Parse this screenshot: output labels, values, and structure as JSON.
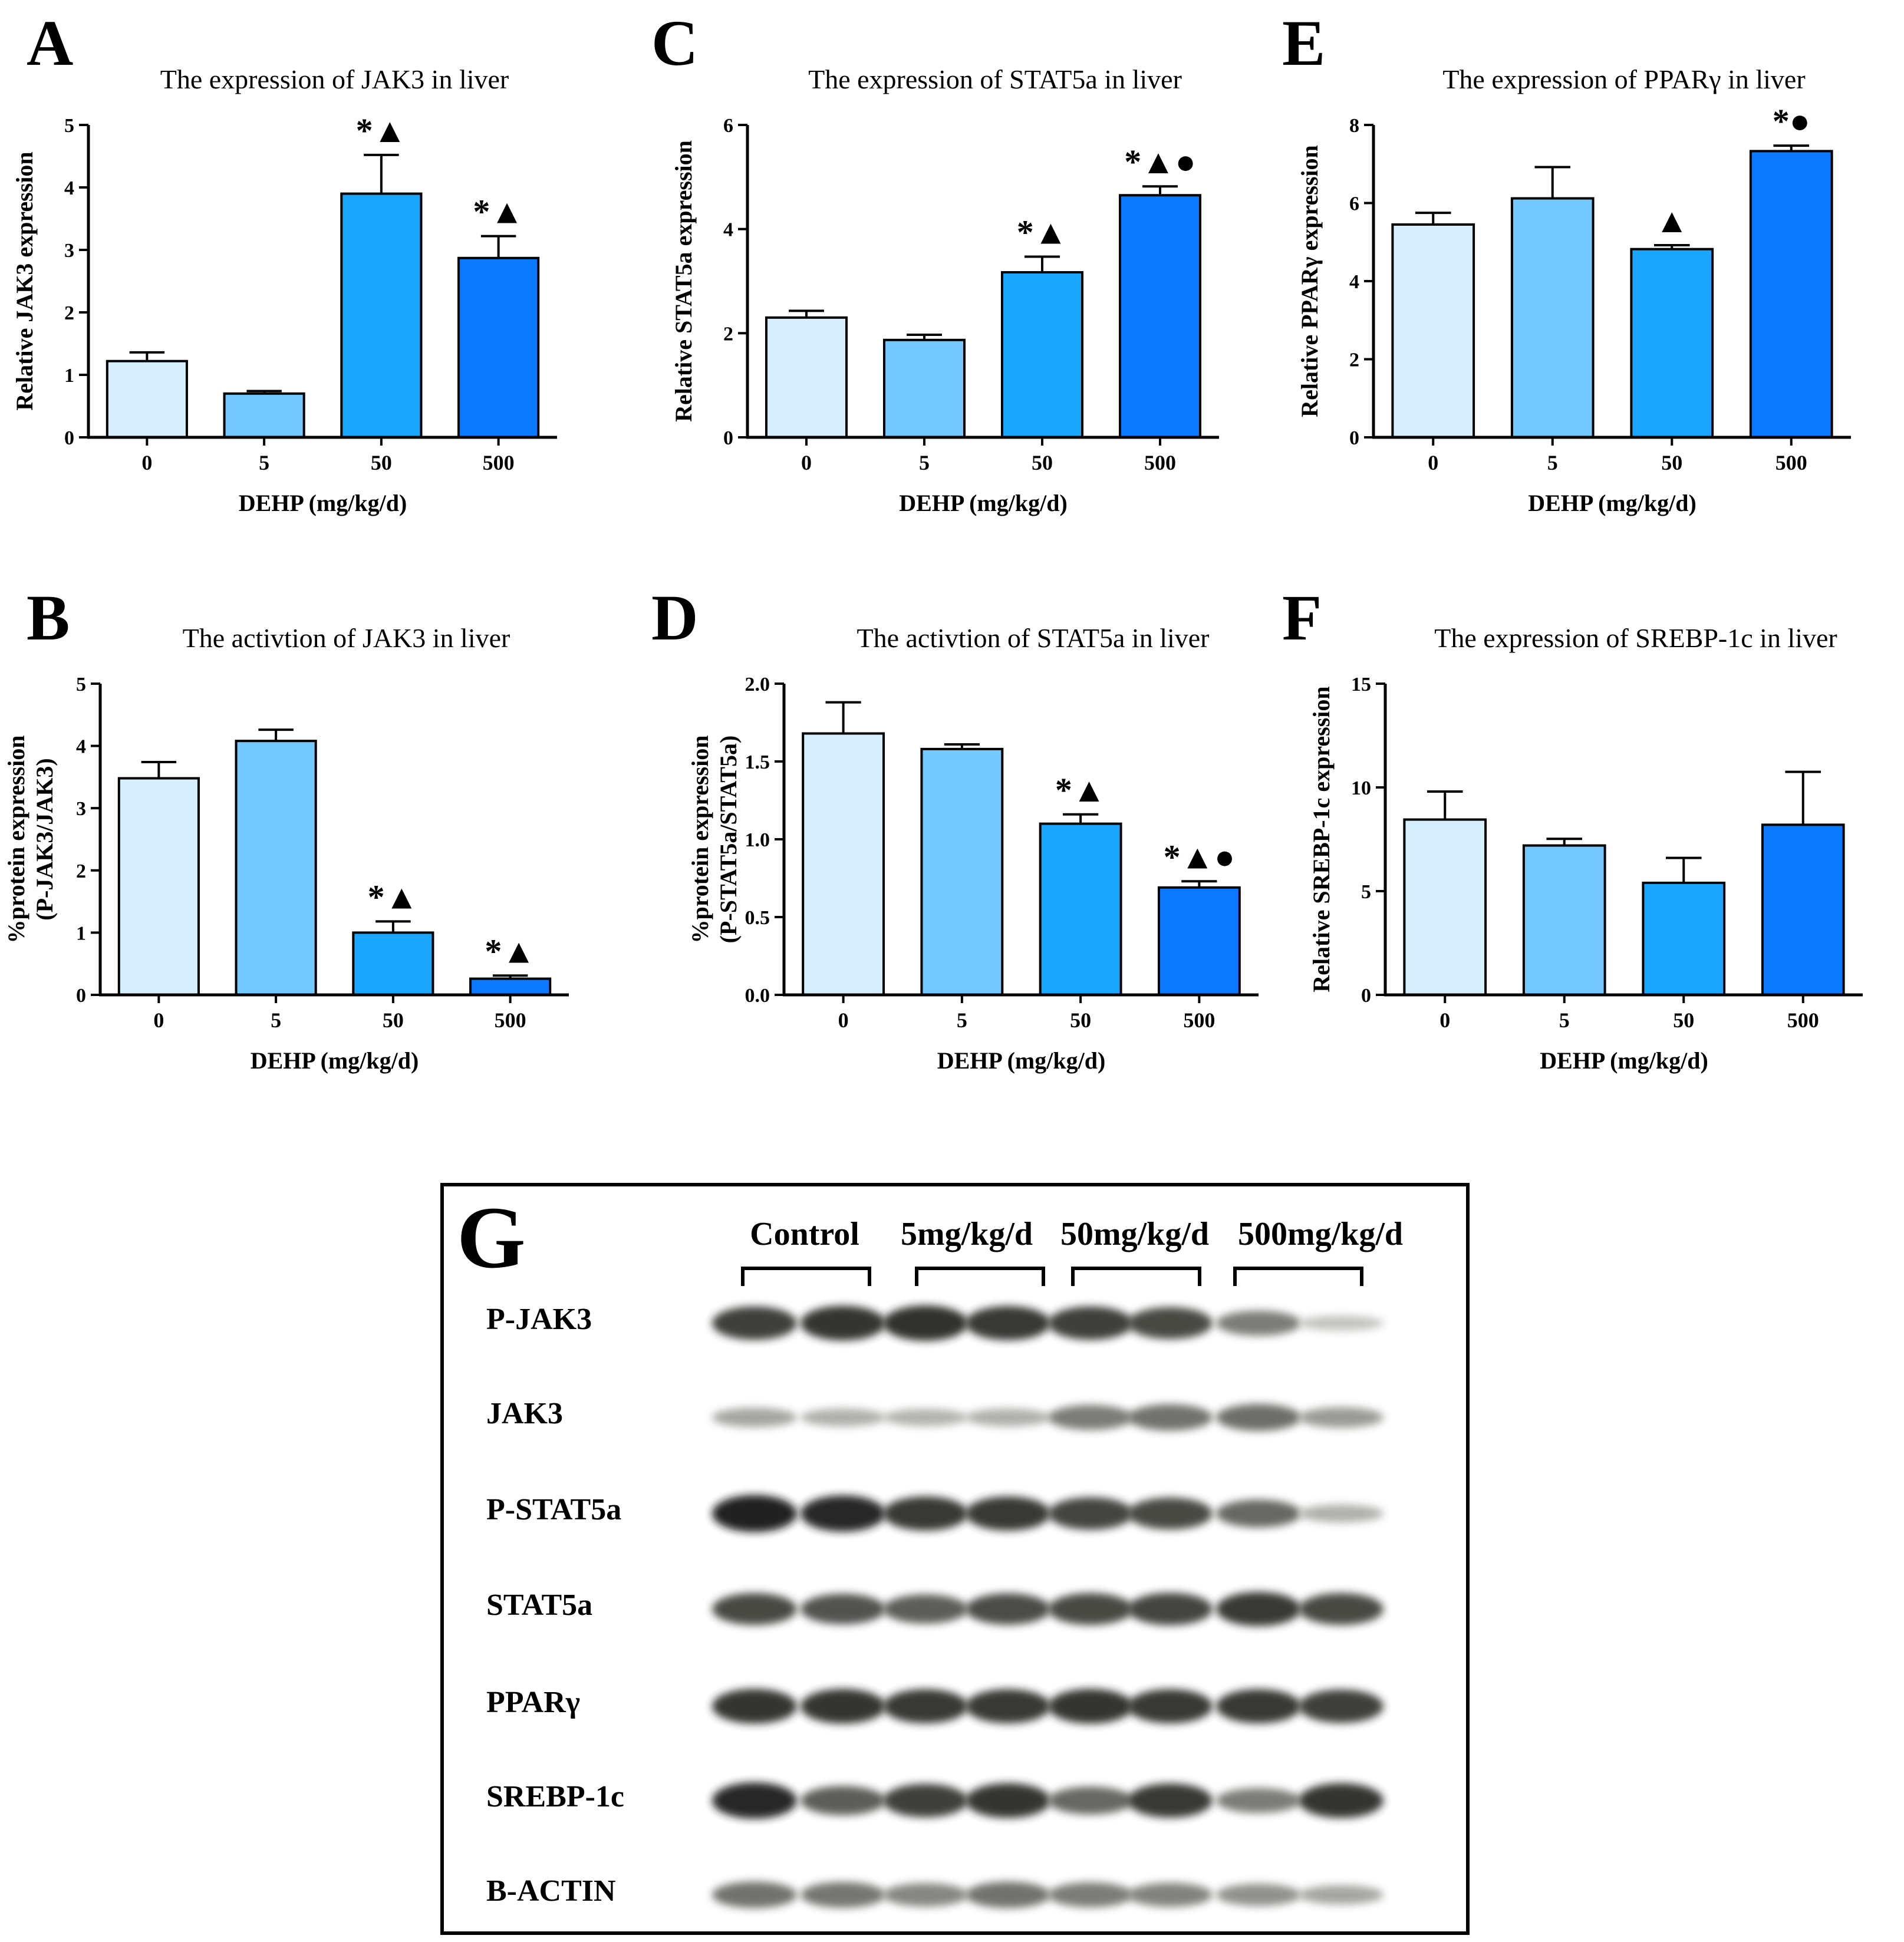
{
  "colors": {
    "bar_0": "#d6efff",
    "bar_5": "#72c8ff",
    "bar_50": "#1aa6ff",
    "bar_500": "#0a78ff",
    "axis": "#000000"
  },
  "chart_data": [
    {
      "id": "A",
      "type": "bar",
      "panel_label": "A",
      "title": "The expression of JAK3  in  liver",
      "ylabel": [
        "Relative  JAK3 expression"
      ],
      "xlabel": "DEHP  (mg/kg/d)",
      "categories": [
        "0",
        "5",
        "50",
        "500"
      ],
      "values": [
        1.22,
        0.7,
        3.9,
        2.87
      ],
      "errors": [
        0.14,
        0.04,
        0.62,
        0.35
      ],
      "annotations": [
        "",
        "",
        "*▲",
        "*▲"
      ],
      "ylim": [
        0,
        5
      ],
      "yticks": [
        "0",
        "1",
        "2",
        "3",
        "4",
        "5"
      ]
    },
    {
      "id": "B",
      "type": "bar",
      "panel_label": "B",
      "title": "The activtion of JAK3 in liver",
      "ylabel": [
        "%protein expression",
        "(P-JAK3/JAK3)"
      ],
      "xlabel": "DEHP  (mg/kg/d)",
      "categories": [
        "0",
        "5",
        "50",
        "500"
      ],
      "values": [
        3.48,
        4.08,
        1.0,
        0.26
      ],
      "errors": [
        0.26,
        0.18,
        0.18,
        0.05
      ],
      "annotations": [
        "",
        "",
        "*▲",
        "*▲"
      ],
      "ylim": [
        0,
        5
      ],
      "yticks": [
        "0",
        "1",
        "2",
        "3",
        "4",
        "5"
      ]
    },
    {
      "id": "C",
      "type": "bar",
      "panel_label": "C",
      "title": "The expression of STAT5a  in  liver",
      "ylabel": [
        "Relative  STAT5a expression"
      ],
      "xlabel": "DEHP  (mg/kg/d)",
      "categories": [
        "0",
        "5",
        "50",
        "500"
      ],
      "values": [
        2.3,
        1.87,
        3.17,
        4.65
      ],
      "errors": [
        0.13,
        0.1,
        0.3,
        0.17
      ],
      "annotations": [
        "",
        "",
        "*▲",
        "*▲●"
      ],
      "ylim": [
        0,
        6
      ],
      "yticks": [
        "0",
        "2",
        "4",
        "6"
      ]
    },
    {
      "id": "D",
      "type": "bar",
      "panel_label": "D",
      "title": "The activtion of STAT5a in liver",
      "ylabel": [
        "%protein expression",
        "(P-STAT5a/STAT5a)"
      ],
      "xlabel": "DEHP  (mg/kg/d)",
      "categories": [
        "0",
        "5",
        "50",
        "500"
      ],
      "values": [
        1.68,
        1.58,
        1.1,
        0.69
      ],
      "errors": [
        0.2,
        0.03,
        0.06,
        0.04
      ],
      "annotations": [
        "",
        "",
        "*▲",
        "*▲●"
      ],
      "ylim": [
        0,
        2.0
      ],
      "yticks": [
        "0.0",
        "0.5",
        "1.0",
        "1.5",
        "2.0"
      ]
    },
    {
      "id": "E",
      "type": "bar",
      "panel_label": "E",
      "title": "The expression of PPARγ   in  liver",
      "ylabel": [
        "Relative PPARγ expression"
      ],
      "xlabel": "DEHP  (mg/kg/d)",
      "categories": [
        "0",
        "5",
        "50",
        "500"
      ],
      "values": [
        5.45,
        6.12,
        4.82,
        7.33
      ],
      "errors": [
        0.3,
        0.8,
        0.1,
        0.14
      ],
      "annotations": [
        "",
        "",
        "▲",
        "*●"
      ],
      "ylim": [
        0,
        8
      ],
      "yticks": [
        "0",
        "2",
        "4",
        "6",
        "8"
      ]
    },
    {
      "id": "F",
      "type": "bar",
      "panel_label": "F",
      "title": "The expression of SREBP-1c   in   liver",
      "ylabel": [
        "Relative SREBP-1c expression"
      ],
      "xlabel": "DEHP  (mg/kg/d)",
      "categories": [
        "0",
        "5",
        "50",
        "500"
      ],
      "values": [
        8.45,
        7.2,
        5.4,
        8.2
      ],
      "errors": [
        1.35,
        0.32,
        1.2,
        2.55
      ],
      "annotations": [
        "",
        "",
        "",
        ""
      ],
      "ylim": [
        0,
        15
      ],
      "yticks": [
        "0",
        "5",
        "10",
        "15"
      ]
    }
  ],
  "blot": {
    "panel_label": "G",
    "groups": [
      "Control",
      "5mg/kg/d",
      "50mg/kg/d",
      "500mg/kg/d"
    ],
    "rows": [
      {
        "label": "P-JAK3",
        "intensity": [
          0.85,
          0.9,
          0.92,
          0.88,
          0.85,
          0.8,
          0.55,
          0.2
        ]
      },
      {
        "label": "JAK3",
        "intensity": [
          0.35,
          0.3,
          0.28,
          0.3,
          0.55,
          0.6,
          0.62,
          0.4
        ]
      },
      {
        "label": "P-STAT5a",
        "intensity": [
          0.98,
          0.95,
          0.88,
          0.88,
          0.82,
          0.8,
          0.65,
          0.3
        ]
      },
      {
        "label": "STAT5a",
        "intensity": [
          0.8,
          0.75,
          0.7,
          0.78,
          0.8,
          0.82,
          0.88,
          0.8
        ]
      },
      {
        "label": "PPARγ",
        "intensity": [
          0.9,
          0.9,
          0.88,
          0.88,
          0.9,
          0.88,
          0.88,
          0.85
        ]
      },
      {
        "label": "SREBP-1c",
        "intensity": [
          0.95,
          0.7,
          0.85,
          0.9,
          0.65,
          0.88,
          0.55,
          0.9
        ]
      },
      {
        "label": "B-ACTIN",
        "intensity": [
          0.6,
          0.58,
          0.5,
          0.6,
          0.55,
          0.52,
          0.45,
          0.35
        ]
      }
    ]
  }
}
